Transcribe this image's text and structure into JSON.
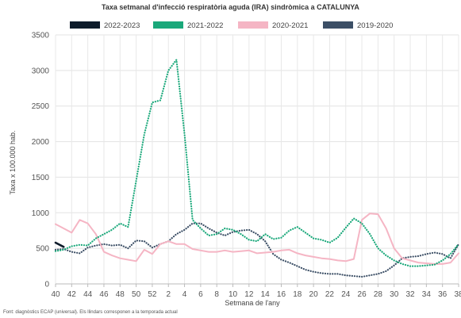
{
  "chart_data": {
    "type": "line",
    "title": "Taxa setmanal d'infecció respiratòria aguda (IRA) sindròmica a CATALUNYA",
    "xlabel": "Setmana de l'any",
    "ylabel": "Taxa x 100.000 hab.",
    "ylim": [
      0,
      3500
    ],
    "yticks": [
      "0",
      "500",
      "1000",
      "1500",
      "2000",
      "2500",
      "3000",
      "3500"
    ],
    "x_categories": [
      "40",
      "41",
      "42",
      "43",
      "44",
      "45",
      "46",
      "47",
      "48",
      "49",
      "50",
      "51",
      "52",
      "1",
      "2",
      "3",
      "4",
      "5",
      "6",
      "7",
      "8",
      "9",
      "10",
      "11",
      "12",
      "13",
      "14",
      "15",
      "16",
      "17",
      "18",
      "19",
      "20",
      "21",
      "22",
      "23",
      "24",
      "25",
      "26",
      "27",
      "28",
      "29",
      "30",
      "31",
      "32",
      "33",
      "34",
      "35",
      "36",
      "37",
      "38"
    ],
    "xticks": [
      "40",
      "42",
      "44",
      "46",
      "48",
      "50",
      "52",
      "2",
      "4",
      "6",
      "8",
      "10",
      "12",
      "14",
      "16",
      "18",
      "20",
      "22",
      "24",
      "26",
      "28",
      "30",
      "32",
      "34",
      "36",
      "38"
    ],
    "grid": true,
    "legend_position": "top",
    "series": [
      {
        "name": "2022-2023",
        "color": "#0d1b2a",
        "style": "solid",
        "values": [
          580,
          520
        ]
      },
      {
        "name": "2021-2022",
        "color": "#1aa87a",
        "style": "dotted",
        "values": [
          460,
          480,
          530,
          550,
          540,
          640,
          700,
          760,
          850,
          800,
          1450,
          2100,
          2550,
          2580,
          3000,
          3150,
          2100,
          900,
          780,
          680,
          700,
          780,
          760,
          700,
          620,
          600,
          700,
          630,
          650,
          750,
          800,
          720,
          640,
          620,
          580,
          650,
          790,
          920,
          850,
          700,
          500,
          400,
          330,
          280,
          250,
          250,
          260,
          270,
          330,
          420,
          560
        ]
      },
      {
        "name": "2020-2021",
        "color": "#f5b5c4",
        "style": "solid",
        "values": [
          840,
          780,
          720,
          900,
          850,
          700,
          450,
          400,
          360,
          340,
          320,
          480,
          420,
          560,
          600,
          560,
          560,
          490,
          470,
          450,
          450,
          470,
          450,
          460,
          470,
          430,
          440,
          450,
          470,
          480,
          430,
          400,
          380,
          360,
          350,
          330,
          320,
          350,
          900,
          990,
          980,
          780,
          500,
          360,
          330,
          300,
          290,
          280,
          280,
          300,
          430
        ]
      },
      {
        "name": "2019-2020",
        "color": "#3c4f66",
        "style": "dotted",
        "values": [
          480,
          490,
          450,
          430,
          510,
          540,
          560,
          540,
          550,
          500,
          610,
          600,
          510,
          560,
          600,
          700,
          760,
          850,
          850,
          780,
          720,
          680,
          730,
          750,
          760,
          700,
          600,
          420,
          340,
          300,
          250,
          200,
          170,
          150,
          140,
          140,
          120,
          110,
          100,
          120,
          140,
          180,
          260,
          360,
          380,
          390,
          420,
          440,
          420,
          360,
          560
        ]
      }
    ]
  },
  "footnote": "Font: diagnòstics ECAP (universal). Els llindars corresponen a la temporada actual"
}
